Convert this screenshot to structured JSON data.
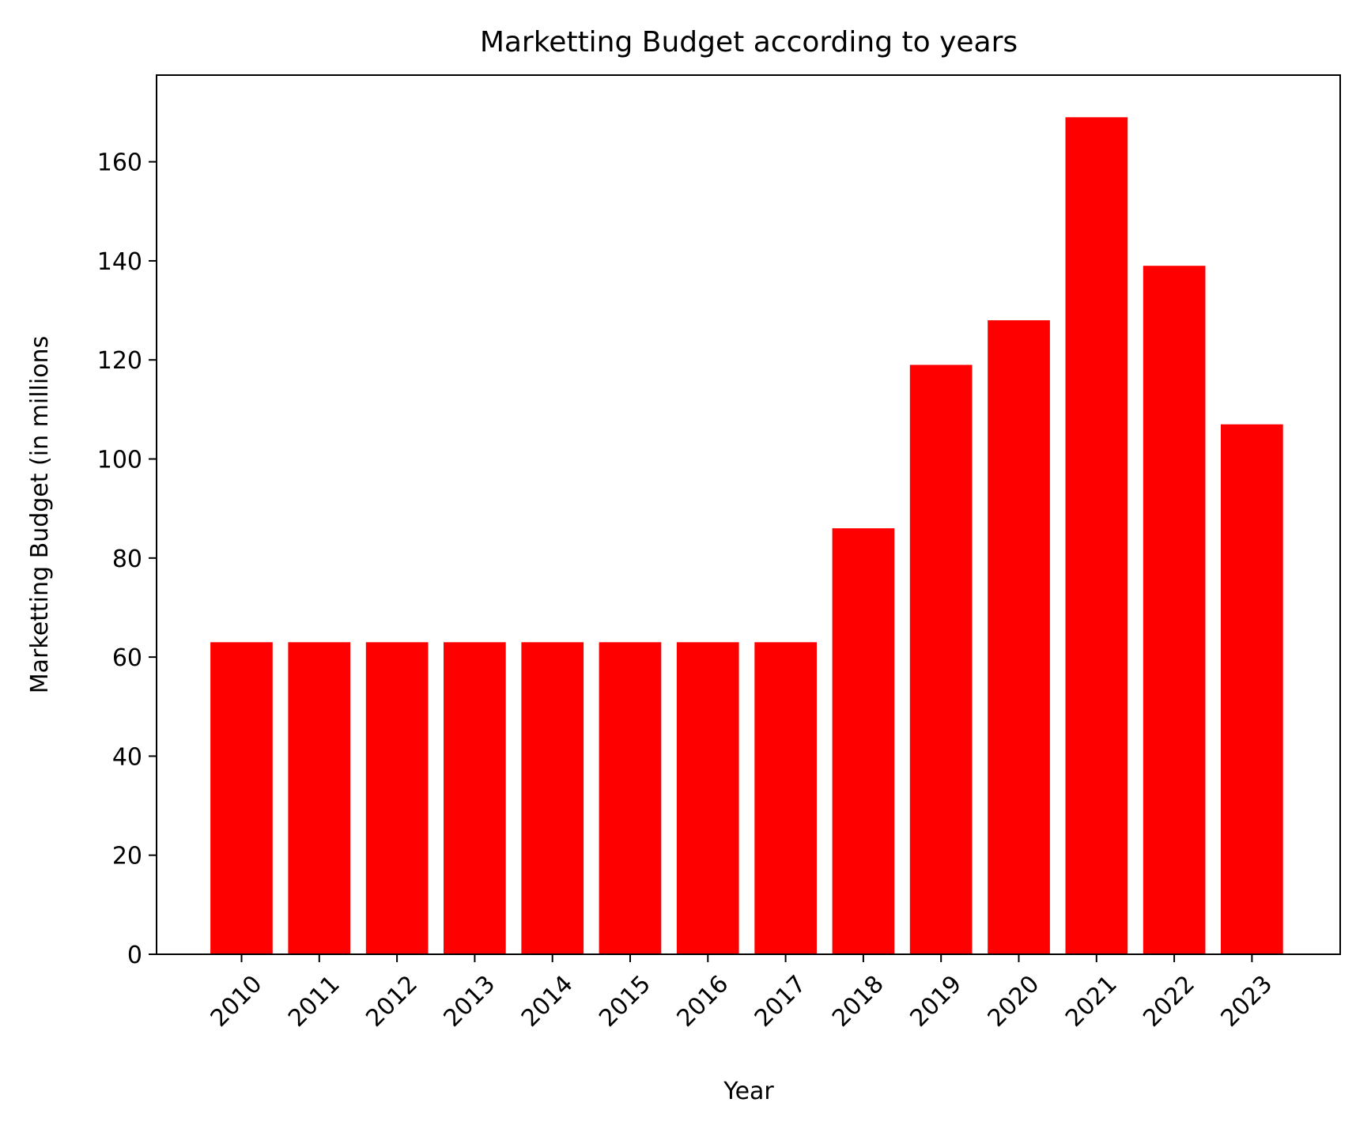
{
  "chart_data": {
    "type": "bar",
    "title": "Marketting Budget according to years",
    "xlabel": "Year",
    "ylabel": "Marketting Budget (in millions",
    "categories": [
      "2010",
      "2011",
      "2012",
      "2013",
      "2014",
      "2015",
      "2016",
      "2017",
      "2018",
      "2019",
      "2020",
      "2021",
      "2022",
      "2023"
    ],
    "values": [
      63,
      63,
      63,
      63,
      63,
      63,
      63,
      63,
      86,
      119,
      128,
      169,
      139,
      107
    ],
    "ylim": [
      0,
      177.5
    ],
    "yticks": [
      0,
      20,
      40,
      60,
      80,
      100,
      120,
      140,
      160
    ],
    "bar_color": "#ff0000",
    "grid": false,
    "xtick_rotation": 45
  }
}
